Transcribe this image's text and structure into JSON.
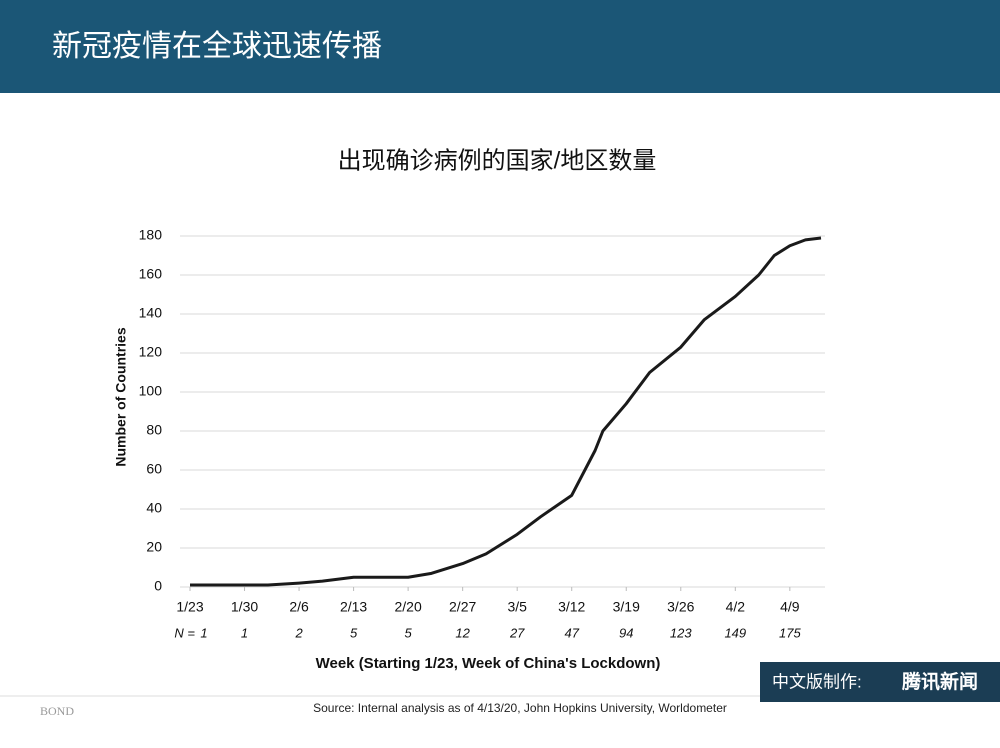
{
  "header": {
    "title": "新冠疫情在全球迅速传播"
  },
  "chart_data": {
    "type": "line",
    "title": "出现确诊病例的国家/地区数量",
    "y_label": "Number of Countries",
    "x_label": "Week (Starting 1/23, Week of China's Lockdown)",
    "x": [
      0,
      3,
      7,
      10,
      14,
      17,
      21,
      24,
      28,
      31,
      35,
      38,
      42,
      45,
      49,
      52,
      53,
      56,
      59,
      63,
      66,
      70,
      73,
      75,
      77,
      79,
      81
    ],
    "values": [
      1,
      1,
      1,
      1,
      2,
      3,
      5,
      5,
      5,
      7,
      12,
      17,
      27,
      36,
      47,
      70,
      80,
      94,
      110,
      123,
      137,
      149,
      160,
      170,
      175,
      178,
      179
    ],
    "color": "#1a1a1a",
    "xlim": [
      0,
      81
    ],
    "xticks": [
      {
        "value": 0,
        "label": "1/23"
      },
      {
        "value": 7,
        "label": "1/30"
      },
      {
        "value": 14,
        "label": "2/6"
      },
      {
        "value": 21,
        "label": "2/13"
      },
      {
        "value": 28,
        "label": "2/20"
      },
      {
        "value": 35,
        "label": "2/27"
      },
      {
        "value": 42,
        "label": "3/5"
      },
      {
        "value": 49,
        "label": "3/12"
      },
      {
        "value": 56,
        "label": "3/19"
      },
      {
        "value": 63,
        "label": "3/26"
      },
      {
        "value": 70,
        "label": "4/2"
      },
      {
        "value": 77,
        "label": "4/9"
      }
    ],
    "n_prefix": "N =",
    "n_values": [
      1,
      1,
      2,
      5,
      5,
      12,
      27,
      47,
      94,
      123,
      149,
      175
    ],
    "ylim": [
      0,
      180
    ],
    "yticks": [
      0,
      20,
      40,
      60,
      80,
      100,
      120,
      140,
      160,
      180
    ],
    "grid": true
  },
  "footer": {
    "logo": "BOND",
    "source": "Source: Internal analysis as of 4/13/20, John Hopkins University, Worldometer",
    "credit": "中文版制作:",
    "credit_brand": "腾讯新闻"
  }
}
